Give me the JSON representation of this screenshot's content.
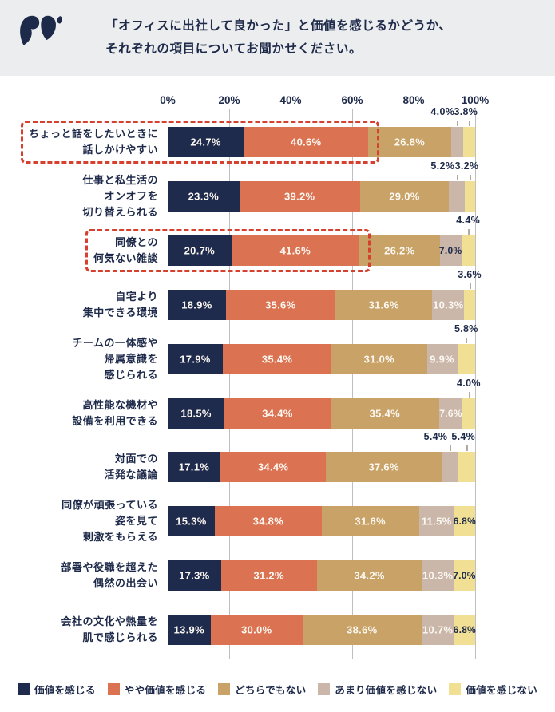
{
  "header": {
    "title_line1": "「オフィスに出社して良かった」と価値を感じるかどうか、",
    "title_line2": "それぞれの項目についてお聞かせください。",
    "logo": "squirrel-brand-mark"
  },
  "chart_data": {
    "type": "bar",
    "stacked": true,
    "orientation": "horizontal",
    "value_unit": "%",
    "x_axis": {
      "position": "top",
      "range": [
        0,
        100
      ],
      "ticks": [
        "0%",
        "20%",
        "40%",
        "60%",
        "80%",
        "100%"
      ],
      "grid": true
    },
    "series": [
      {
        "name": "価値を感じる",
        "color": "#1F2B4D"
      },
      {
        "name": "やや価値を感じる",
        "color": "#DB7251"
      },
      {
        "name": "どちらでもない",
        "color": "#C8A266"
      },
      {
        "name": "あまり価値を感じない",
        "color": "#CBB7AA"
      },
      {
        "name": "価値を感じない",
        "color": "#F1DF94"
      }
    ],
    "rows": [
      {
        "category": [
          "ちょっと話をしたいときに",
          "話しかけやすい"
        ],
        "highlighted": true,
        "values": [
          24.7,
          40.6,
          26.8,
          4.0,
          3.8
        ],
        "label_modes": [
          "in",
          "in",
          "in",
          "above",
          "above"
        ]
      },
      {
        "category": [
          "仕事と私生活の",
          "オンオフを",
          "切り替えられる"
        ],
        "highlighted": false,
        "values": [
          23.3,
          39.2,
          29.0,
          5.2,
          3.2
        ],
        "label_modes": [
          "in",
          "in",
          "in",
          "above",
          "above"
        ]
      },
      {
        "category": [
          "同僚との",
          "何気ない雑談"
        ],
        "highlighted": true,
        "values": [
          20.7,
          41.6,
          26.2,
          7.0,
          4.4
        ],
        "label_modes": [
          "in",
          "in",
          "in",
          "in-dark",
          "above"
        ]
      },
      {
        "category": [
          "自宅より",
          "集中できる環境"
        ],
        "highlighted": false,
        "values": [
          18.9,
          35.6,
          31.6,
          10.3,
          3.6
        ],
        "label_modes": [
          "in",
          "in",
          "in",
          "in",
          "above"
        ]
      },
      {
        "category": [
          "チームの一体感や",
          "帰属意識を",
          "感じられる"
        ],
        "highlighted": false,
        "values": [
          17.9,
          35.4,
          31.0,
          9.9,
          5.8
        ],
        "label_modes": [
          "in",
          "in",
          "in",
          "in",
          "above"
        ]
      },
      {
        "category": [
          "高性能な機材や",
          "設備を利用できる"
        ],
        "highlighted": false,
        "values": [
          18.5,
          34.4,
          35.4,
          7.6,
          4.0
        ],
        "label_modes": [
          "in",
          "in",
          "in",
          "in",
          "above"
        ]
      },
      {
        "category": [
          "対面での",
          "活発な議論"
        ],
        "highlighted": false,
        "values": [
          17.1,
          34.4,
          37.6,
          5.4,
          5.4
        ],
        "label_modes": [
          "in",
          "in",
          "in",
          "above",
          "above"
        ]
      },
      {
        "category": [
          "同僚が頑張っている",
          "姿を見て",
          "刺激をもらえる"
        ],
        "highlighted": false,
        "values": [
          15.3,
          34.8,
          31.6,
          11.5,
          6.8
        ],
        "label_modes": [
          "in",
          "in",
          "in",
          "in",
          "in-dark"
        ]
      },
      {
        "category": [
          "部署や役職を超えた",
          "偶然の出会い"
        ],
        "highlighted": false,
        "values": [
          17.3,
          31.2,
          34.2,
          10.3,
          7.0
        ],
        "label_modes": [
          "in",
          "in",
          "in",
          "in",
          "in-dark"
        ]
      },
      {
        "category": [
          "会社の文化や熱量を",
          "肌で感じられる"
        ],
        "highlighted": false,
        "values": [
          13.9,
          30.0,
          38.6,
          10.7,
          6.8
        ],
        "label_modes": [
          "in",
          "in",
          "in",
          "in",
          "in-dark"
        ]
      }
    ],
    "legend": {
      "position": "bottom"
    },
    "title": ""
  },
  "colors": {
    "header_bg": "#ECEDEE",
    "text": "#1E2A4A",
    "grid": "#BCC0C3",
    "bar_label_light": "#FBF7F1",
    "highlight_border": "#D6402F",
    "leader_line": "#B3A99D"
  }
}
